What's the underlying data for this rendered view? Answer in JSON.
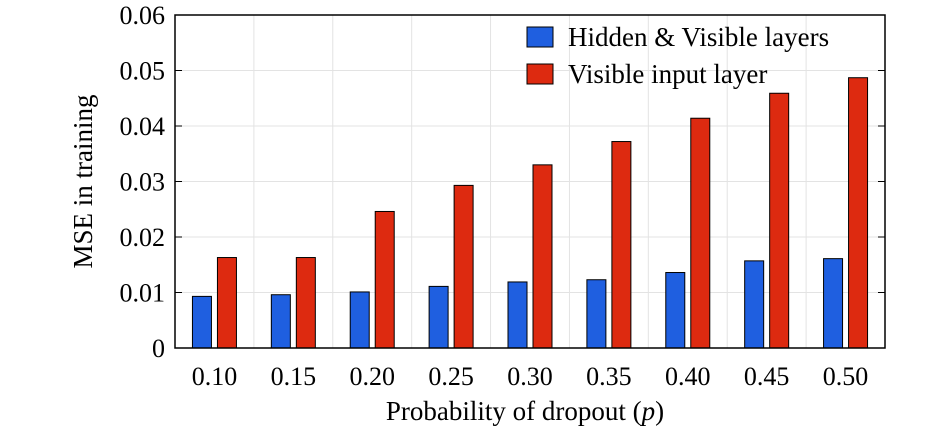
{
  "chart_data": {
    "type": "bar",
    "xlabel": "Probability of dropout (p)",
    "ylabel": "MSE in training",
    "categories": [
      "0.10",
      "0.15",
      "0.20",
      "0.25",
      "0.30",
      "0.35",
      "0.40",
      "0.45",
      "0.50"
    ],
    "ylim": [
      0,
      0.06
    ],
    "yticks": [
      "0",
      "0.01",
      "0.02",
      "0.03",
      "0.04",
      "0.05",
      "0.06"
    ],
    "grid": true,
    "legend_position": "top-right",
    "series": [
      {
        "name": "Hidden & Visible layers",
        "color": "#1f5fe0",
        "values": [
          0.0093,
          0.0096,
          0.0101,
          0.0111,
          0.0119,
          0.0123,
          0.0136,
          0.0157,
          0.0161
        ]
      },
      {
        "name": "Visible input layer",
        "color": "#dd2a10",
        "values": [
          0.0163,
          0.0163,
          0.0246,
          0.0293,
          0.033,
          0.0372,
          0.0414,
          0.0459,
          0.0487
        ]
      }
    ]
  }
}
